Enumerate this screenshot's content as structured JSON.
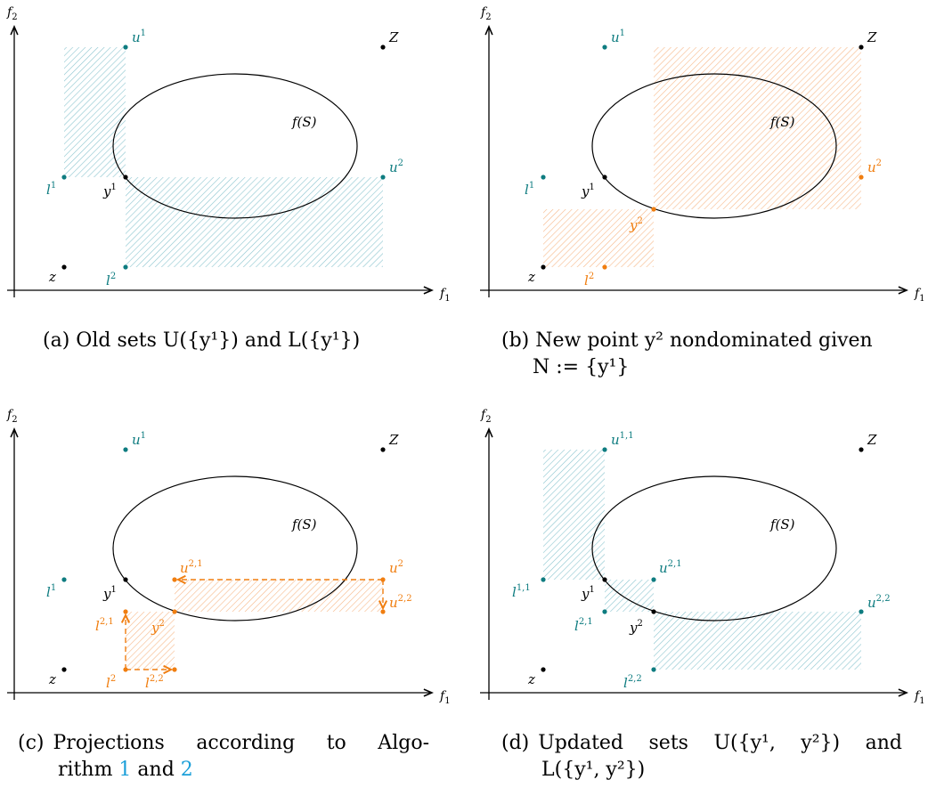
{
  "colors": {
    "teal": "#0e7c80",
    "orange": "#f07e10",
    "black": "#000000",
    "teal_fill": "#bfe0e6",
    "orange_fill": "#fbd3b0",
    "link": "#1a9fd9"
  },
  "axes": {
    "f1": "f",
    "f1_sub": "1",
    "f2": "f",
    "f2_sub": "2"
  },
  "labels": {
    "fS": "f(S)",
    "Z": "Z",
    "z": "z",
    "u1": "u",
    "u1_sup": "1",
    "u2": "u",
    "u2_sup": "2",
    "l1": "l",
    "l1_sup": "1",
    "l2": "l",
    "l2_sup": "2",
    "y1": "y",
    "y1_sup": "1",
    "y2": "y",
    "y2_sup": "2",
    "u21": "u",
    "u21_sup": "2,1",
    "u22": "u",
    "u22_sup": "2,2",
    "l21": "l",
    "l21_sup": "2,1",
    "l22": "l",
    "l22_sup": "2,2",
    "u11": "u",
    "u11_sup": "1,1",
    "l11": "l",
    "l11_sup": "1,1"
  },
  "captions": {
    "a": {
      "tag": "(a)",
      "text": "Old sets U({y¹}) and L({y¹})"
    },
    "b": {
      "tag": "(b)",
      "line1": "New point y² nondominated given",
      "line2": "N := {y¹}"
    },
    "c": {
      "tag": "(c)",
      "line1": "Projections according to Algo-",
      "line2a": "rithm ",
      "ref1": "1",
      "and": " and ",
      "ref2": "2"
    },
    "d": {
      "tag": "(d)",
      "line1": "Updated sets U({y¹, y²}) and",
      "line2": "L({y¹, y²})"
    }
  }
}
